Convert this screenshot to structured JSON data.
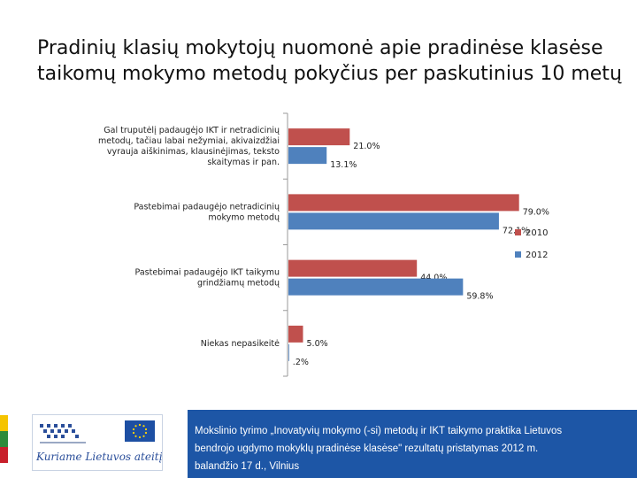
{
  "slide": {
    "title_lines": [
      "Pradinių klasių mokytojų nuomonė apie pradinėse klasėse",
      "taikomų mokymo metodų pokyčius per paskutinius 10 metų"
    ]
  },
  "chart_data": {
    "type": "bar",
    "orientation": "horizontal",
    "categories": [
      "Gal truputėlį padaugėjo IKT ir netradicinių metodų, tačiau labai nežymiai, akivaizdžiai vyrauja aiškinimas, klausinėjimas, teksto skaitymas ir pan.",
      "Pastebimai padaugėjo netradicinių mokymo metodų",
      "Pastebimai padaugėjo IKT taikymu grindžiamų metodų",
      "Niekas nepasikeitė"
    ],
    "category_label_lines": [
      [
        "Gal truputėlį padaugėjo IKT ir netradicinių",
        "metodų, tačiau labai nežymiai, akivaizdžiai",
        "vyrauja aiškinimas, klausinėjimas, teksto",
        "skaitymas ir pan."
      ],
      [
        "Pastebimai padaugėjo netradicinių",
        "mokymo metodų"
      ],
      [
        "Pastebimai padaugėjo IKT taikymu",
        "grindžiamų metodų"
      ],
      [
        "Niekas nepasikeitė"
      ]
    ],
    "series": [
      {
        "name": "2010",
        "color": "#c0504d",
        "values": [
          21.0,
          79.0,
          44.0,
          5.0
        ],
        "labels": [
          "21.0%",
          "79.0%",
          "44.0%",
          "5.0%"
        ]
      },
      {
        "name": "2012",
        "color": "#4f81bd",
        "values": [
          13.1,
          72.1,
          59.8,
          0.2
        ],
        "labels": [
          "13.1%",
          "72.1%",
          "59.8%",
          ".2%"
        ]
      }
    ],
    "xlim": [
      0,
      100
    ],
    "grid": false,
    "legend_position": "right"
  },
  "footer": {
    "logo_slogan": "Kuriame Lietuvos ateitį",
    "caption_lines": [
      "Mokslinio tyrimo „Inovatyvių mokymo (-si) metodų ir IKT taikymo praktika Lietuvos",
      "bendrojo ugdymo mokyklų pradinėse klasėse\" rezultatų pristatymas 2012 m.",
      "balandžio 17 d., Vilnius"
    ],
    "panel_color": "#1d56a6",
    "stripe_colors": [
      "#f5c400",
      "#2e8b3a",
      "#c8202b"
    ]
  }
}
